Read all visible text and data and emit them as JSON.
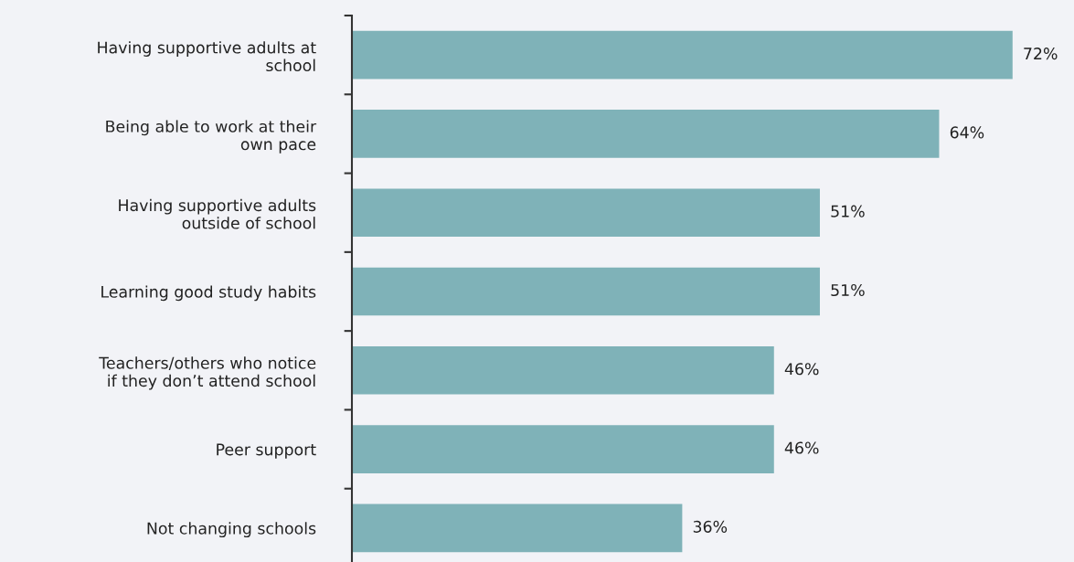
{
  "chart_data": {
    "type": "bar",
    "orientation": "horizontal",
    "categories": [
      "Having supportive adults at\nschool",
      "Being able to work at their\nown pace",
      "Having supportive adults\noutside of school",
      "Learning good study habits",
      "Teachers/others who notice\nif they don’t attend school",
      "Peer support",
      "Not changing schools"
    ],
    "values": [
      72,
      64,
      51,
      51,
      46,
      46,
      36
    ],
    "value_labels": [
      "72%",
      "64%",
      "51%",
      "51%",
      "46%",
      "46%",
      "36%"
    ],
    "color": "#7fb2b8"
  }
}
